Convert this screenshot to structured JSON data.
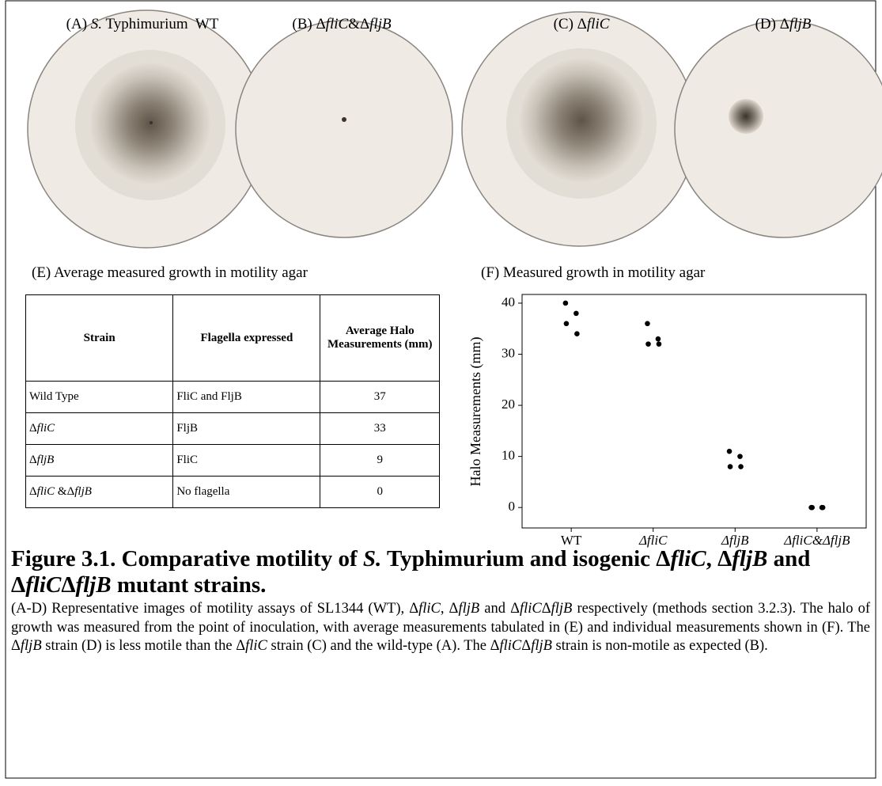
{
  "plates": [
    {
      "title": [
        "(A) ",
        "S.",
        " Typhimurium  WT"
      ]
    },
    {
      "title": [
        "(B) Δ",
        "fliC",
        "&Δ",
        "fljB"
      ]
    },
    {
      "title": [
        "(C) Δ",
        "fliC"
      ]
    },
    {
      "title": [
        "(D) Δ",
        "fljB"
      ]
    }
  ],
  "table": {
    "title": "(E) Average  measured growth  in motility agar",
    "header": [
      "Strain",
      "Flagella expressed",
      "Average Halo Measurements (mm)"
    ],
    "rows": [
      [
        [
          "Wild Type"
        ],
        [
          "FliC and FljB"
        ],
        37
      ],
      [
        [
          "Δ",
          "fliC"
        ],
        [
          "FljB"
        ],
        33
      ],
      [
        [
          "Δ",
          "fljB"
        ],
        [
          "FliC"
        ],
        9
      ],
      [
        [
          "Δ",
          "fliC",
          " &Δ",
          "fljB"
        ],
        [
          "No flagella"
        ],
        0
      ]
    ]
  },
  "chart_data": {
    "type": "strip",
    "title": "(F) Measured growth  in motility agar",
    "y_label": "Halo Measurements (mm)",
    "categories": [
      "WT",
      "ΔfliC",
      "ΔfljB",
      "ΔfliC&ΔfljB"
    ],
    "values": [
      [
        40,
        38,
        36,
        34
      ],
      [
        36,
        33,
        32,
        32
      ],
      [
        11,
        10,
        8,
        8
      ],
      [
        0,
        0,
        0,
        0
      ]
    ],
    "color": "#000000",
    "ylim": [
      -4,
      41.7
    ],
    "yticks": [
      0,
      10,
      20,
      30,
      40
    ]
  },
  "figure": {
    "title": [
      "Figure 3.1. Comparative motility of ",
      "S.",
      " Typhimurium and isogenic Δ",
      "fliC",
      ", Δ",
      "fljB",
      " and Δ",
      "fliC",
      "Δ",
      "fljB",
      " mutant strains."
    ],
    "caption": [
      "(A-D) Representative images of motility assays of SL1344 (WT), Δ",
      "fliC",
      ", Δ",
      "fljB",
      " and Δ",
      "fliC",
      "Δ",
      "fljB",
      " respectively (methods section 3.2.3). The halo of growth was measured from the point of inoculation, with average measurements tabulated in (E) and individual measurements shown in (F). The Δ",
      "fljB",
      " strain (D) is less motile than the Δ",
      "fliC",
      " strain (C) and the wild-type (A). The Δ",
      "fliC",
      "Δ",
      "fljB",
      " strain is non-motile as expected (B)."
    ]
  }
}
